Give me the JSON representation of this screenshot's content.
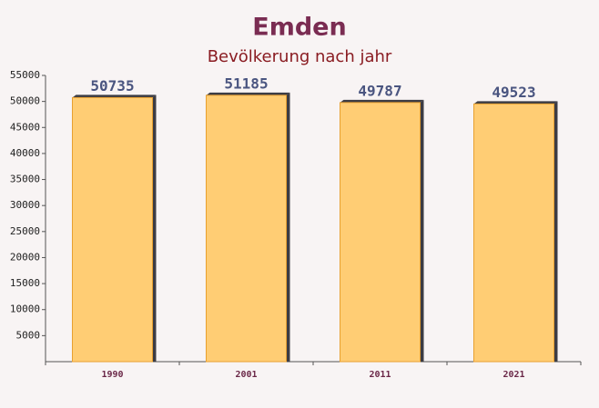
{
  "chart_data": {
    "type": "bar",
    "title": "Emden",
    "subtitle": "Bevölkerung nach jahr",
    "categories": [
      "1990",
      "2001",
      "2011",
      "2021"
    ],
    "values": [
      50735,
      51185,
      49787,
      49523
    ],
    "color": "#ffc966",
    "ylim": [
      0,
      55000
    ],
    "yticks": [
      5000,
      10000,
      15000,
      20000,
      25000,
      30000,
      35000,
      40000,
      45000,
      50000,
      55000
    ]
  }
}
